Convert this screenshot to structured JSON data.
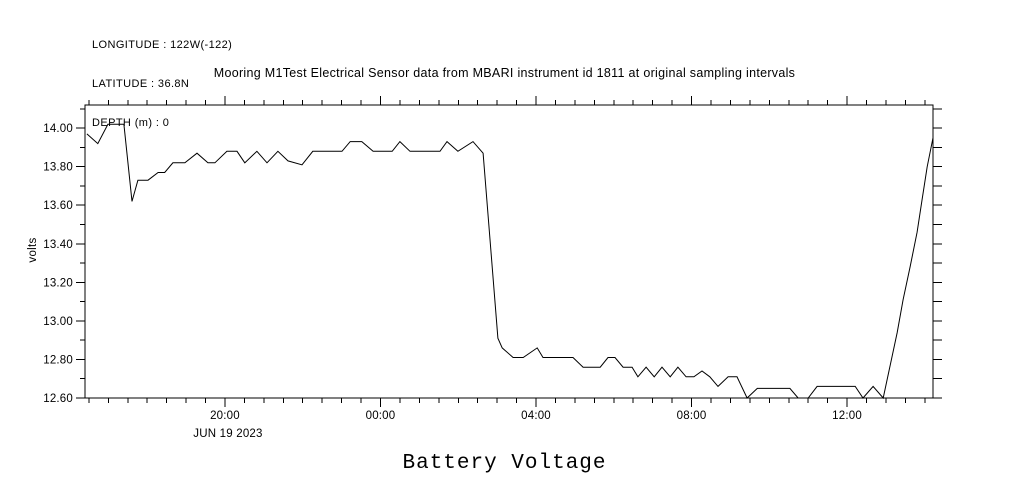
{
  "header": {
    "longitude": "LONGITUDE : 122W(-122)",
    "latitude": "LATITUDE : 36.8N",
    "depth": "DEPTH (m) : 0"
  },
  "colors": {
    "line": "#000000",
    "text": "#000000",
    "background": "#ffffff"
  },
  "chart_data": {
    "type": "line",
    "title": "Mooring M1Test Electrical Sensor data from MBARI instrument id 1811 at original sampling intervals",
    "caption": "Battery Voltage",
    "ylabel": "volts",
    "x_date_label": "JUN 19 2023",
    "grid": false,
    "legend": "none",
    "x_axis": {
      "unit": "time of day (hours since JUN 19 2023 00:00)",
      "min_hours": 16.4,
      "max_hours": 38.21,
      "minor_tick_interval_hours": 0.5,
      "major_ticks": [
        {
          "hours": 20,
          "label": "20:00"
        },
        {
          "hours": 24,
          "label": "00:00"
        },
        {
          "hours": 28,
          "label": "04:00"
        },
        {
          "hours": 32,
          "label": "08:00"
        },
        {
          "hours": 36,
          "label": "12:00"
        }
      ]
    },
    "y_axis": {
      "unit": "volts",
      "min": 12.6,
      "max": 14.12,
      "minor_tick_interval": 0.1,
      "major_ticks": [
        {
          "value": 14.0,
          "label": "14.00"
        },
        {
          "value": 13.8,
          "label": "13.80"
        },
        {
          "value": 13.6,
          "label": "13.60"
        },
        {
          "value": 13.4,
          "label": "13.40"
        },
        {
          "value": 13.2,
          "label": "13.20"
        },
        {
          "value": 13.0,
          "label": "13.00"
        },
        {
          "value": 12.8,
          "label": "12.80"
        },
        {
          "value": 12.6,
          "label": "12.60"
        }
      ]
    },
    "series": [
      {
        "name": "Battery Voltage",
        "color": "#000000",
        "points": [
          [
            16.45,
            13.97
          ],
          [
            16.73,
            13.92
          ],
          [
            16.99,
            14.02
          ],
          [
            17.4,
            14.02
          ],
          [
            17.61,
            13.62
          ],
          [
            17.76,
            13.73
          ],
          [
            18.02,
            13.73
          ],
          [
            18.28,
            13.77
          ],
          [
            18.45,
            13.77
          ],
          [
            18.66,
            13.82
          ],
          [
            18.97,
            13.82
          ],
          [
            19.28,
            13.87
          ],
          [
            19.56,
            13.82
          ],
          [
            19.74,
            13.82
          ],
          [
            20.05,
            13.88
          ],
          [
            20.31,
            13.88
          ],
          [
            20.51,
            13.82
          ],
          [
            20.82,
            13.88
          ],
          [
            21.08,
            13.82
          ],
          [
            21.36,
            13.88
          ],
          [
            21.62,
            13.83
          ],
          [
            21.98,
            13.81
          ],
          [
            22.26,
            13.88
          ],
          [
            23.01,
            13.88
          ],
          [
            23.22,
            13.93
          ],
          [
            23.52,
            13.93
          ],
          [
            23.81,
            13.88
          ],
          [
            24.3,
            13.88
          ],
          [
            24.5,
            13.93
          ],
          [
            24.76,
            13.88
          ],
          [
            25.53,
            13.88
          ],
          [
            25.71,
            13.93
          ],
          [
            25.99,
            13.88
          ],
          [
            26.38,
            13.93
          ],
          [
            26.64,
            13.87
          ],
          [
            27.02,
            12.91
          ],
          [
            27.13,
            12.86
          ],
          [
            27.41,
            12.81
          ],
          [
            27.67,
            12.81
          ],
          [
            28.03,
            12.86
          ],
          [
            28.18,
            12.81
          ],
          [
            28.95,
            12.81
          ],
          [
            29.21,
            12.76
          ],
          [
            29.65,
            12.76
          ],
          [
            29.85,
            12.81
          ],
          [
            30.03,
            12.81
          ],
          [
            30.24,
            12.76
          ],
          [
            30.47,
            12.76
          ],
          [
            30.62,
            12.71
          ],
          [
            30.83,
            12.76
          ],
          [
            31.04,
            12.71
          ],
          [
            31.24,
            12.76
          ],
          [
            31.45,
            12.71
          ],
          [
            31.65,
            12.76
          ],
          [
            31.86,
            12.71
          ],
          [
            32.06,
            12.71
          ],
          [
            32.27,
            12.74
          ],
          [
            32.47,
            12.71
          ],
          [
            32.68,
            12.66
          ],
          [
            32.94,
            12.71
          ],
          [
            33.17,
            12.71
          ],
          [
            33.43,
            12.6
          ],
          [
            33.69,
            12.65
          ],
          [
            34.53,
            12.65
          ],
          [
            34.74,
            12.6
          ],
          [
            35.0,
            12.6
          ],
          [
            35.23,
            12.66
          ],
          [
            36.21,
            12.66
          ],
          [
            36.41,
            12.6
          ],
          [
            36.67,
            12.66
          ],
          [
            36.93,
            12.6
          ],
          [
            37.29,
            12.94
          ],
          [
            37.44,
            13.11
          ],
          [
            37.62,
            13.28
          ],
          [
            37.8,
            13.46
          ],
          [
            37.93,
            13.63
          ],
          [
            38.06,
            13.8
          ],
          [
            38.21,
            13.95
          ]
        ]
      }
    ]
  }
}
